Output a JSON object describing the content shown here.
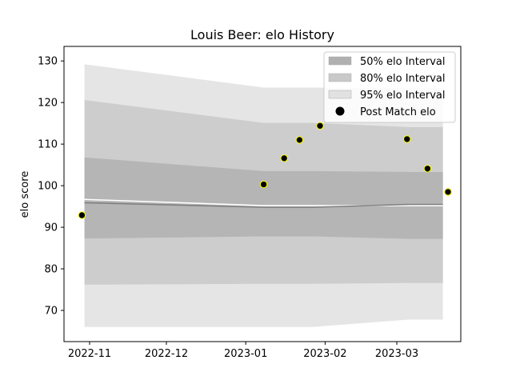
{
  "chart_data": {
    "type": "area",
    "title": "Louis Beer: elo History",
    "xlabel": "",
    "ylabel": "elo score",
    "ylim": [
      62.5,
      133.5
    ],
    "xlim": [
      "2022-10-22",
      "2023-03-26"
    ],
    "grid": false,
    "legend_position": "top-right",
    "x_ticks": [
      "2022-11",
      "2022-12",
      "2023-01",
      "2023-02",
      "2023-03"
    ],
    "y_ticks": [
      70,
      80,
      90,
      100,
      110,
      120,
      130
    ],
    "interval_dates": [
      "2022-10-30",
      "2023-01-08",
      "2023-01-27",
      "2023-03-06",
      "2023-03-19"
    ],
    "series": [
      {
        "name": "50% elo Interval",
        "color": "#b0b0b0",
        "lower": [
          87.3,
          87.8,
          87.8,
          87.2,
          87.2
        ],
        "upper": [
          106.8,
          103.5,
          103.5,
          103.3,
          103.3
        ]
      },
      {
        "name": "80% elo Interval",
        "color": "#c9c9c9",
        "lower": [
          76.2,
          76.4,
          76.4,
          76.6,
          76.6
        ],
        "upper": [
          120.6,
          115.1,
          115.1,
          114.1,
          114.1
        ]
      },
      {
        "name": "95% elo Interval",
        "color": "#e1e1e1",
        "lower": [
          66.0,
          66.0,
          66.0,
          67.8,
          67.8
        ],
        "upper": [
          129.2,
          123.6,
          123.6,
          123.5,
          123.5
        ]
      }
    ],
    "lines": [
      {
        "dates": [
          "2022-10-30",
          "2023-01-08",
          "2023-01-27",
          "2023-03-06",
          "2023-03-19"
        ],
        "values": [
          96.7,
          95.2,
          95.2,
          95.2,
          95.2
        ],
        "color": "#ffffff"
      },
      {
        "dates": [
          "2022-10-30",
          "2023-01-08",
          "2023-01-27",
          "2023-03-06",
          "2023-03-19"
        ],
        "values": [
          95.9,
          94.8,
          94.8,
          95.5,
          95.5
        ],
        "color": "#808080"
      }
    ],
    "points": {
      "name": "Post Match elo",
      "color": "#000000",
      "edge_color": "#ffff00",
      "dates": [
        "2022-10-29",
        "2023-01-08",
        "2023-01-16",
        "2023-01-22",
        "2023-01-30",
        "2023-03-05",
        "2023-03-13",
        "2023-03-21"
      ],
      "values": [
        92.9,
        100.3,
        106.6,
        111.0,
        114.4,
        111.2,
        104.1,
        98.5
      ]
    }
  }
}
